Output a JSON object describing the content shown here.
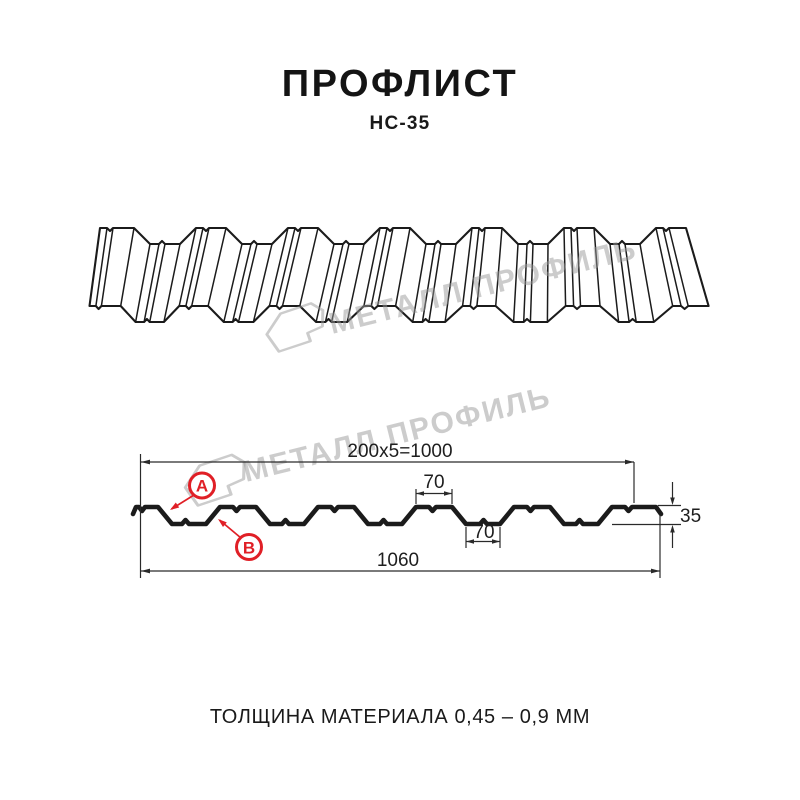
{
  "header": {
    "title": "ПРОФЛИСТ",
    "subtitle": "НС-35"
  },
  "watermark": {
    "text": "МЕТАЛЛ ПРОФИЛЬ",
    "logo_icon": "metal-profile-hexagon-logo"
  },
  "diagram": {
    "dim_pitch": "200x5=1000",
    "dim_rib_top": "70",
    "dim_rib_bottom": "70",
    "dim_height": "35",
    "dim_width_total": "1060",
    "label_a": "А",
    "label_b": "В"
  },
  "footer": {
    "thickness_note": "ТОЛЩИНА МАТЕРИАЛА 0,45 – 0,9 ММ"
  },
  "colors": {
    "accent_red": "#e01f26",
    "line": "#1b1b1b",
    "watermark_gray": "#c9c9c9"
  }
}
